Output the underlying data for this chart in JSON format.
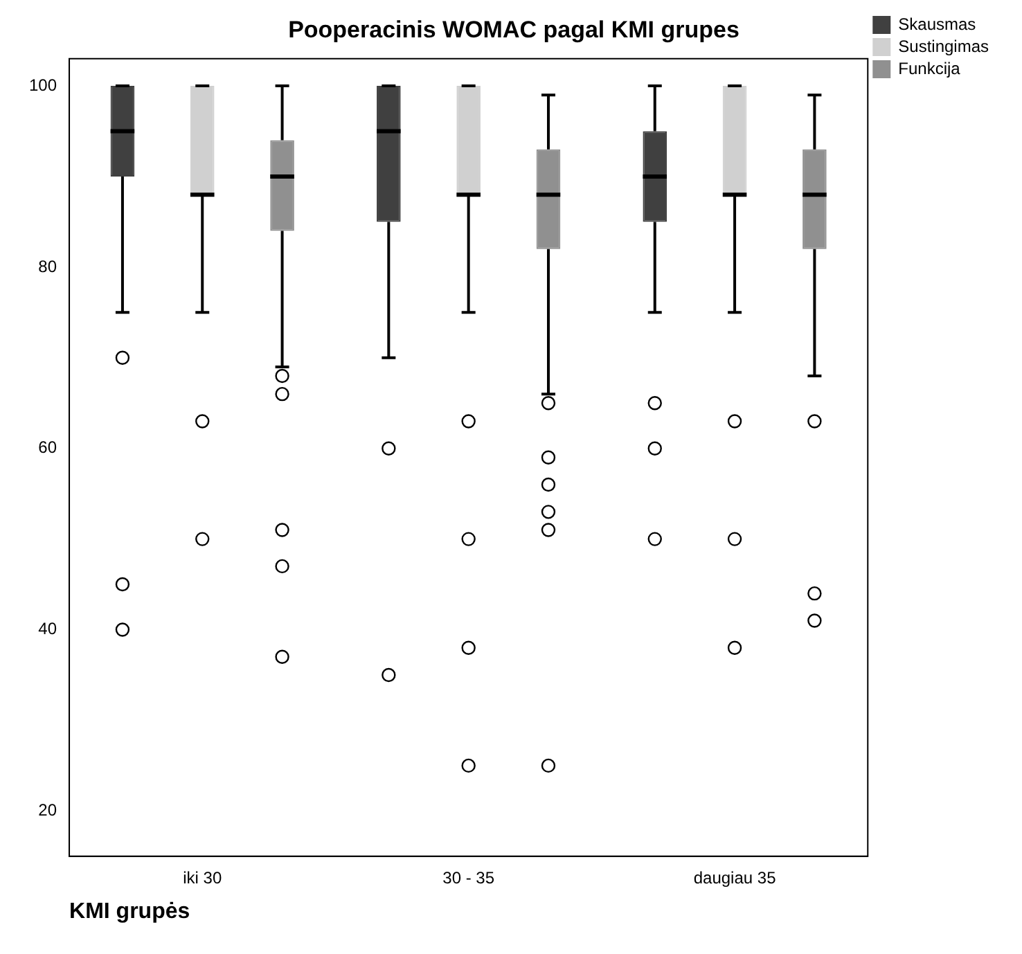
{
  "chart_data": {
    "type": "box",
    "title": "Pooperacinis WOMAC pagal KMI grupes",
    "xlabel": "KMI grupės",
    "categories": [
      "iki 30",
      "30 - 35",
      "daugiau 35"
    ],
    "ylim": [
      15,
      103
    ],
    "yticks": [
      20,
      40,
      60,
      80,
      100
    ],
    "grid": false,
    "legend": "top right",
    "series": [
      {
        "name": "Skausmas",
        "color": "#404040",
        "boxes": [
          {
            "low": 75,
            "q1": 90,
            "median": 95,
            "q3": 100,
            "high": 100,
            "outliers": [
              70,
              45,
              40
            ]
          },
          {
            "low": 70,
            "q1": 85,
            "median": 95,
            "q3": 100,
            "high": 100,
            "outliers": [
              60,
              35
            ]
          },
          {
            "low": 75,
            "q1": 85,
            "median": 90,
            "q3": 95,
            "high": 100,
            "outliers": [
              65,
              60,
              50
            ]
          }
        ]
      },
      {
        "name": "Sustingimas",
        "color": "#d0d0d0",
        "boxes": [
          {
            "low": 75,
            "q1": 88,
            "median": 88,
            "q3": 100,
            "high": 100,
            "outliers": [
              63,
              50
            ]
          },
          {
            "low": 75,
            "q1": 88,
            "median": 88,
            "q3": 100,
            "high": 100,
            "outliers": [
              63,
              50,
              38,
              25
            ]
          },
          {
            "low": 75,
            "q1": 88,
            "median": 88,
            "q3": 100,
            "high": 100,
            "outliers": [
              63,
              50,
              38
            ]
          }
        ]
      },
      {
        "name": "Funkcija",
        "color": "#909090",
        "boxes": [
          {
            "low": 69,
            "q1": 84,
            "median": 90,
            "q3": 94,
            "high": 100,
            "outliers": [
              68,
              66,
              51,
              47,
              37
            ]
          },
          {
            "low": 66,
            "q1": 82,
            "median": 88,
            "q3": 93,
            "high": 99,
            "outliers": [
              65,
              59,
              56,
              53,
              51,
              25
            ]
          },
          {
            "low": 68,
            "q1": 82,
            "median": 88,
            "q3": 93,
            "high": 99,
            "outliers": [
              63,
              44,
              41
            ]
          }
        ]
      }
    ]
  }
}
